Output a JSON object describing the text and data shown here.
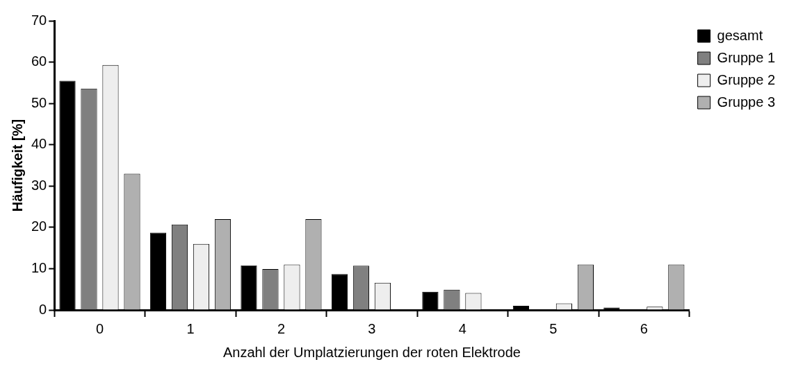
{
  "chart_data": {
    "type": "bar",
    "xlabel": "Anzahl der Umplatzierungen der roten Elektrode",
    "ylabel": "Häufigkeit [%]",
    "categories": [
      "0",
      "1",
      "2",
      "3",
      "4",
      "5",
      "6"
    ],
    "series": [
      {
        "name": "gesamt",
        "color": "#000000",
        "values": [
          55.5,
          18.7,
          10.8,
          8.7,
          4.4,
          1.0,
          0.6
        ]
      },
      {
        "name": "Gruppe 1",
        "color": "#808080",
        "values": [
          53.6,
          20.7,
          9.9,
          10.7,
          4.9,
          0,
          0
        ]
      },
      {
        "name": "Gruppe 2",
        "color": "#eeeeee",
        "values": [
          59.3,
          16.0,
          11.0,
          6.6,
          4.1,
          1.6,
          0.8
        ]
      },
      {
        "name": "Gruppe 3",
        "color": "#b0b0b0",
        "values": [
          33.0,
          22.0,
          22.0,
          0,
          0,
          11.0,
          11.0
        ]
      }
    ],
    "ylim": [
      0,
      70
    ],
    "yticks": [
      0,
      10,
      20,
      30,
      40,
      50,
      60,
      70
    ],
    "grid": false,
    "legend": "top right"
  }
}
